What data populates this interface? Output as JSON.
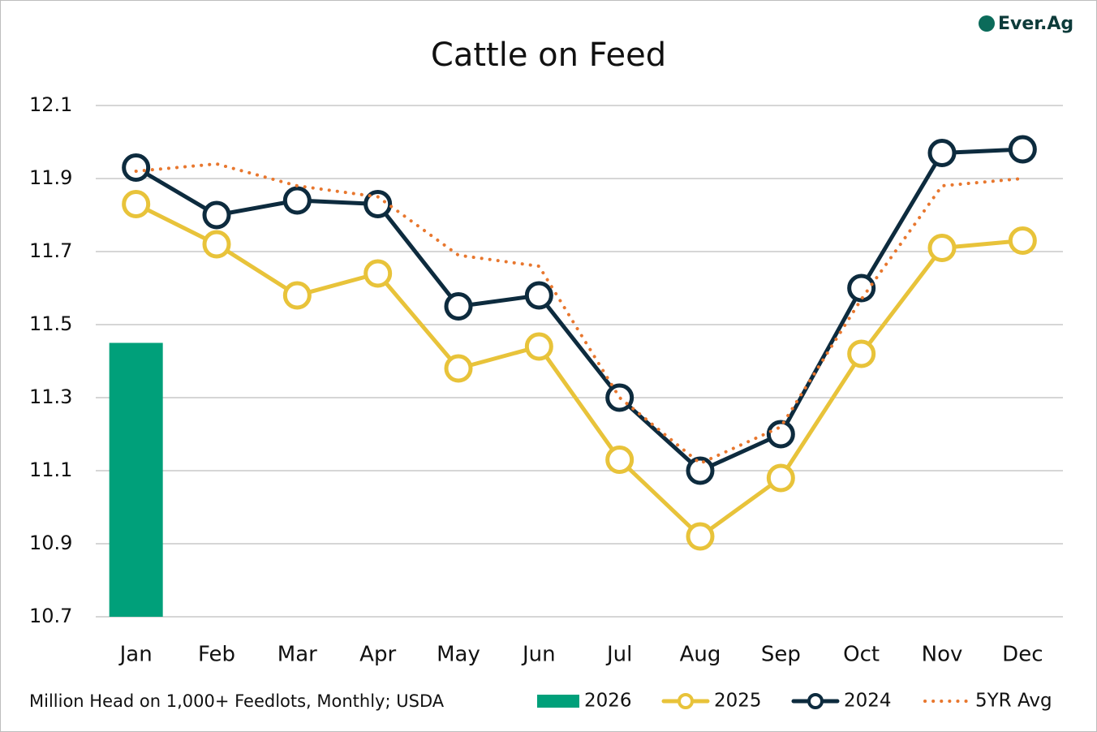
{
  "chart_data": {
    "type": "line",
    "title": "Cattle on Feed",
    "note": "Million Head on 1,000+ Feedlots, Monthly; USDA",
    "logo": "Ever.Ag",
    "categories": [
      "Jan",
      "Feb",
      "Mar",
      "Apr",
      "May",
      "Jun",
      "Jul",
      "Aug",
      "Sep",
      "Oct",
      "Nov",
      "Dec"
    ],
    "series": [
      {
        "name": "2026",
        "type": "bar",
        "color": "#00a07a",
        "values": [
          11.45,
          null,
          null,
          null,
          null,
          null,
          null,
          null,
          null,
          null,
          null,
          null
        ]
      },
      {
        "name": "2025",
        "type": "line",
        "marker": "circle",
        "color": "#e8c33a",
        "values": [
          11.83,
          11.72,
          11.58,
          11.64,
          11.38,
          11.44,
          11.13,
          10.92,
          11.08,
          11.42,
          11.71,
          11.73
        ]
      },
      {
        "name": "2024",
        "type": "line",
        "marker": "circle",
        "color": "#0d2b3e",
        "values": [
          11.93,
          11.8,
          11.84,
          11.83,
          11.55,
          11.58,
          11.3,
          11.1,
          11.2,
          11.6,
          11.97,
          11.98
        ]
      },
      {
        "name": "5YR Avg",
        "type": "line",
        "dash": "dot",
        "color": "#e8772e",
        "values": [
          11.92,
          11.94,
          11.88,
          11.85,
          11.69,
          11.66,
          11.3,
          11.12,
          11.22,
          11.57,
          11.88,
          11.9
        ]
      }
    ],
    "ylim": [
      10.7,
      12.1
    ],
    "yticks": [
      10.7,
      10.9,
      11.1,
      11.3,
      11.5,
      11.7,
      11.9,
      12.1
    ],
    "grid": true,
    "legend": "bottom"
  }
}
